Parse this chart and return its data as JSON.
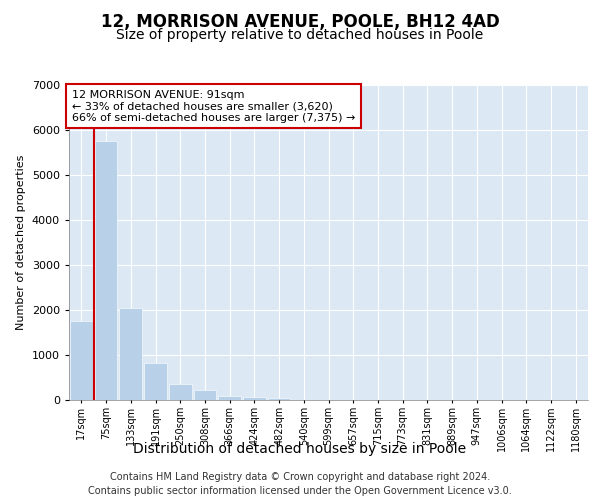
{
  "title_line1": "12, MORRISON AVENUE, POOLE, BH12 4AD",
  "title_line2": "Size of property relative to detached houses in Poole",
  "xlabel": "Distribution of detached houses by size in Poole",
  "ylabel": "Number of detached properties",
  "footer_line1": "Contains HM Land Registry data © Crown copyright and database right 2024.",
  "footer_line2": "Contains public sector information licensed under the Open Government Licence v3.0.",
  "annotation_line1": "12 MORRISON AVENUE: 91sqm",
  "annotation_line2": "← 33% of detached houses are smaller (3,620)",
  "annotation_line3": "66% of semi-detached houses are larger (7,375) →",
  "bar_color": "#b8d0e8",
  "marker_line_color": "#cc0000",
  "plot_bg_color": "#dce9f5",
  "categories": [
    "17sqm",
    "75sqm",
    "133sqm",
    "191sqm",
    "250sqm",
    "308sqm",
    "366sqm",
    "424sqm",
    "482sqm",
    "540sqm",
    "599sqm",
    "657sqm",
    "715sqm",
    "773sqm",
    "831sqm",
    "889sqm",
    "947sqm",
    "1006sqm",
    "1064sqm",
    "1122sqm",
    "1180sqm"
  ],
  "values": [
    1750,
    5750,
    2050,
    820,
    360,
    225,
    100,
    60,
    50,
    0,
    0,
    0,
    0,
    0,
    0,
    0,
    0,
    0,
    0,
    0,
    0
  ],
  "marker_bar_index": 1,
  "ylim": [
    0,
    7000
  ],
  "yticks": [
    0,
    1000,
    2000,
    3000,
    4000,
    5000,
    6000,
    7000
  ],
  "title1_fontsize": 12,
  "title2_fontsize": 10,
  "ylabel_fontsize": 8,
  "xlabel_fontsize": 10,
  "tick_fontsize": 7,
  "footer_fontsize": 7,
  "ann_fontsize": 8
}
